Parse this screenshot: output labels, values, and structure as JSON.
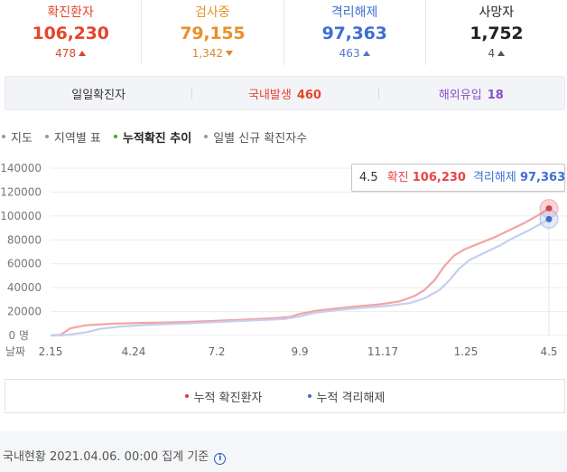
{
  "stats": [
    {
      "label": "확진환자",
      "value": "106,230",
      "delta": "478",
      "direction": "up",
      "color": "#e5452c",
      "delta_color": "#d9452e"
    },
    {
      "label": "검사중",
      "value": "79,155",
      "delta": "1,342",
      "direction": "down",
      "color": "#e8912a",
      "delta_color": "#d58a2c"
    },
    {
      "label": "격리해제",
      "value": "97,363",
      "delta": "463",
      "direction": "up",
      "color": "#3f6fd1",
      "delta_color": "#5577c8"
    },
    {
      "label": "사망자",
      "value": "1,752",
      "delta": "4",
      "direction": "up",
      "color": "#222222",
      "delta_color": "#555555"
    }
  ],
  "daily": {
    "title": "일일확진자",
    "domestic_label": "국내발생",
    "domestic_value": "460",
    "overseas_label": "해외유입",
    "overseas_value": "18",
    "domestic_color": "#e5452c",
    "overseas_color": "#8a4fc7"
  },
  "tabs": [
    {
      "label": "지도",
      "active": false
    },
    {
      "label": "지역별 표",
      "active": false
    },
    {
      "label": "누적확진 추이",
      "active": true
    },
    {
      "label": "일별 신규 확진자수",
      "active": false
    }
  ],
  "tooltip": {
    "date": "4.5",
    "confirmed_label": "확진",
    "confirmed_value": "106,230",
    "released_label": "격리해제",
    "released_value": "97,363"
  },
  "chart_data": {
    "type": "line",
    "xlabel": "날짜",
    "ylabel": "",
    "ylim": [
      0,
      140000
    ],
    "y_ticks": [
      0,
      20000,
      40000,
      60000,
      80000,
      100000,
      120000,
      140000
    ],
    "y_tick_labels": [
      "0 명",
      "20000",
      "40000",
      "60000",
      "80000",
      "100000",
      "120000",
      "140000"
    ],
    "x_ticks": [
      "2.15",
      "4.24",
      "7.2",
      "9.9",
      "11.17",
      "1.25",
      "4.5"
    ],
    "grid": true,
    "legend": "bottom",
    "series": [
      {
        "name": "누적 확진환자",
        "color": "#f4a3a3",
        "marker_color": "#e03c3c",
        "points": [
          [
            0,
            0
          ],
          [
            0.02,
            500
          ],
          [
            0.04,
            6000
          ],
          [
            0.07,
            8500
          ],
          [
            0.12,
            9800
          ],
          [
            0.18,
            10500
          ],
          [
            0.25,
            11000
          ],
          [
            0.32,
            12000
          ],
          [
            0.4,
            13500
          ],
          [
            0.45,
            14500
          ],
          [
            0.48,
            15500
          ],
          [
            0.5,
            18000
          ],
          [
            0.53,
            20500
          ],
          [
            0.57,
            22500
          ],
          [
            0.62,
            24500
          ],
          [
            0.66,
            26000
          ],
          [
            0.7,
            28500
          ],
          [
            0.73,
            33000
          ],
          [
            0.75,
            38000
          ],
          [
            0.77,
            46000
          ],
          [
            0.79,
            58000
          ],
          [
            0.81,
            67000
          ],
          [
            0.83,
            72000
          ],
          [
            0.86,
            77000
          ],
          [
            0.89,
            82000
          ],
          [
            0.92,
            88000
          ],
          [
            0.95,
            94000
          ],
          [
            0.98,
            101000
          ],
          [
            1.0,
            106230
          ]
        ]
      },
      {
        "name": "누적 격리해제",
        "color": "#c5cff0",
        "marker_color": "#3b6ed1",
        "points": [
          [
            0,
            0
          ],
          [
            0.02,
            0
          ],
          [
            0.04,
            800
          ],
          [
            0.07,
            2500
          ],
          [
            0.1,
            5500
          ],
          [
            0.14,
            7500
          ],
          [
            0.2,
            9000
          ],
          [
            0.27,
            10000
          ],
          [
            0.35,
            11500
          ],
          [
            0.43,
            13000
          ],
          [
            0.47,
            13800
          ],
          [
            0.5,
            16000
          ],
          [
            0.53,
            19000
          ],
          [
            0.57,
            21000
          ],
          [
            0.62,
            23000
          ],
          [
            0.67,
            24500
          ],
          [
            0.72,
            27000
          ],
          [
            0.75,
            31000
          ],
          [
            0.78,
            38000
          ],
          [
            0.8,
            46000
          ],
          [
            0.82,
            56000
          ],
          [
            0.84,
            63000
          ],
          [
            0.87,
            69000
          ],
          [
            0.9,
            75000
          ],
          [
            0.93,
            82000
          ],
          [
            0.96,
            88000
          ],
          [
            0.99,
            95000
          ],
          [
            1.0,
            97363
          ]
        ]
      }
    ]
  },
  "legend": {
    "confirmed": "누적 확진환자",
    "released": "누적 격리해제"
  },
  "footer": {
    "text": "국내현황 2021.04.06. 00:00 집계 기준",
    "info_glyph": "i"
  }
}
